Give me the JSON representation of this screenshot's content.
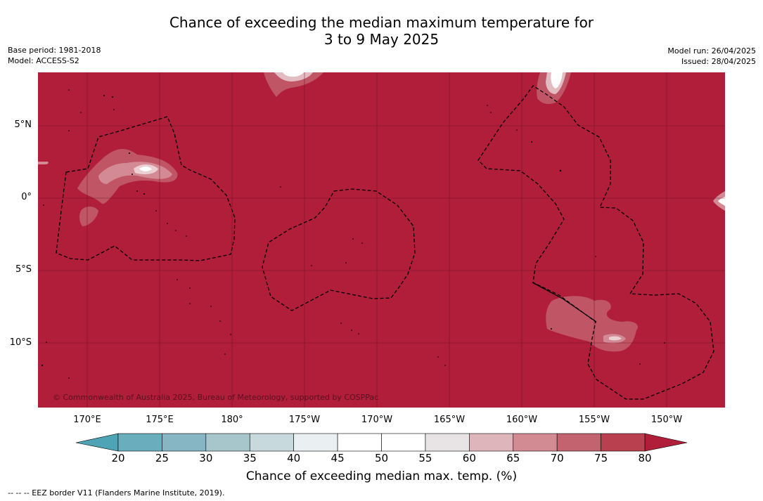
{
  "header": {
    "title_line1": "Chance of exceeding the median maximum temperature for",
    "title_line2": "3 to 9 May 2025",
    "base_period": "Base period: 1981-2018",
    "model": "Model: ACCESS-S2",
    "model_run": "Model run: 26/04/2025",
    "issued": "Issued: 28/04/2025"
  },
  "map": {
    "lon_labels": [
      "170°E",
      "175°E",
      "180°",
      "175°W",
      "170°W",
      "165°W",
      "160°W",
      "155°W",
      "150°W"
    ],
    "lat_labels": [
      "5°N",
      "0°",
      "5°S",
      "10°S"
    ],
    "copyright": "© Commonwealth of Australia 2025, Bureau of Meteorology, supported by COSPPac",
    "background_color": "#b01e3a"
  },
  "colorbar": {
    "ticks": [
      "20",
      "25",
      "30",
      "35",
      "40",
      "45",
      "50",
      "55",
      "60",
      "65",
      "70",
      "75",
      "80"
    ],
    "colors": [
      "#6aaebd",
      "#86b5c3",
      "#a7c6cc",
      "#c7d9dd",
      "#eaeff1",
      "#ffffff",
      "#ffffff",
      "#e8e3e4",
      "#deb5ba",
      "#d28a93",
      "#c36370",
      "#b9404f"
    ],
    "under_color": "#4ea3b4",
    "over_color": "#b01e3a",
    "label": "Chance of exceeding median max. temp. (%)"
  },
  "footer": {
    "legend": "--  --  -- EEZ border V11 (Flanders Marine Institute, 2019)."
  }
}
